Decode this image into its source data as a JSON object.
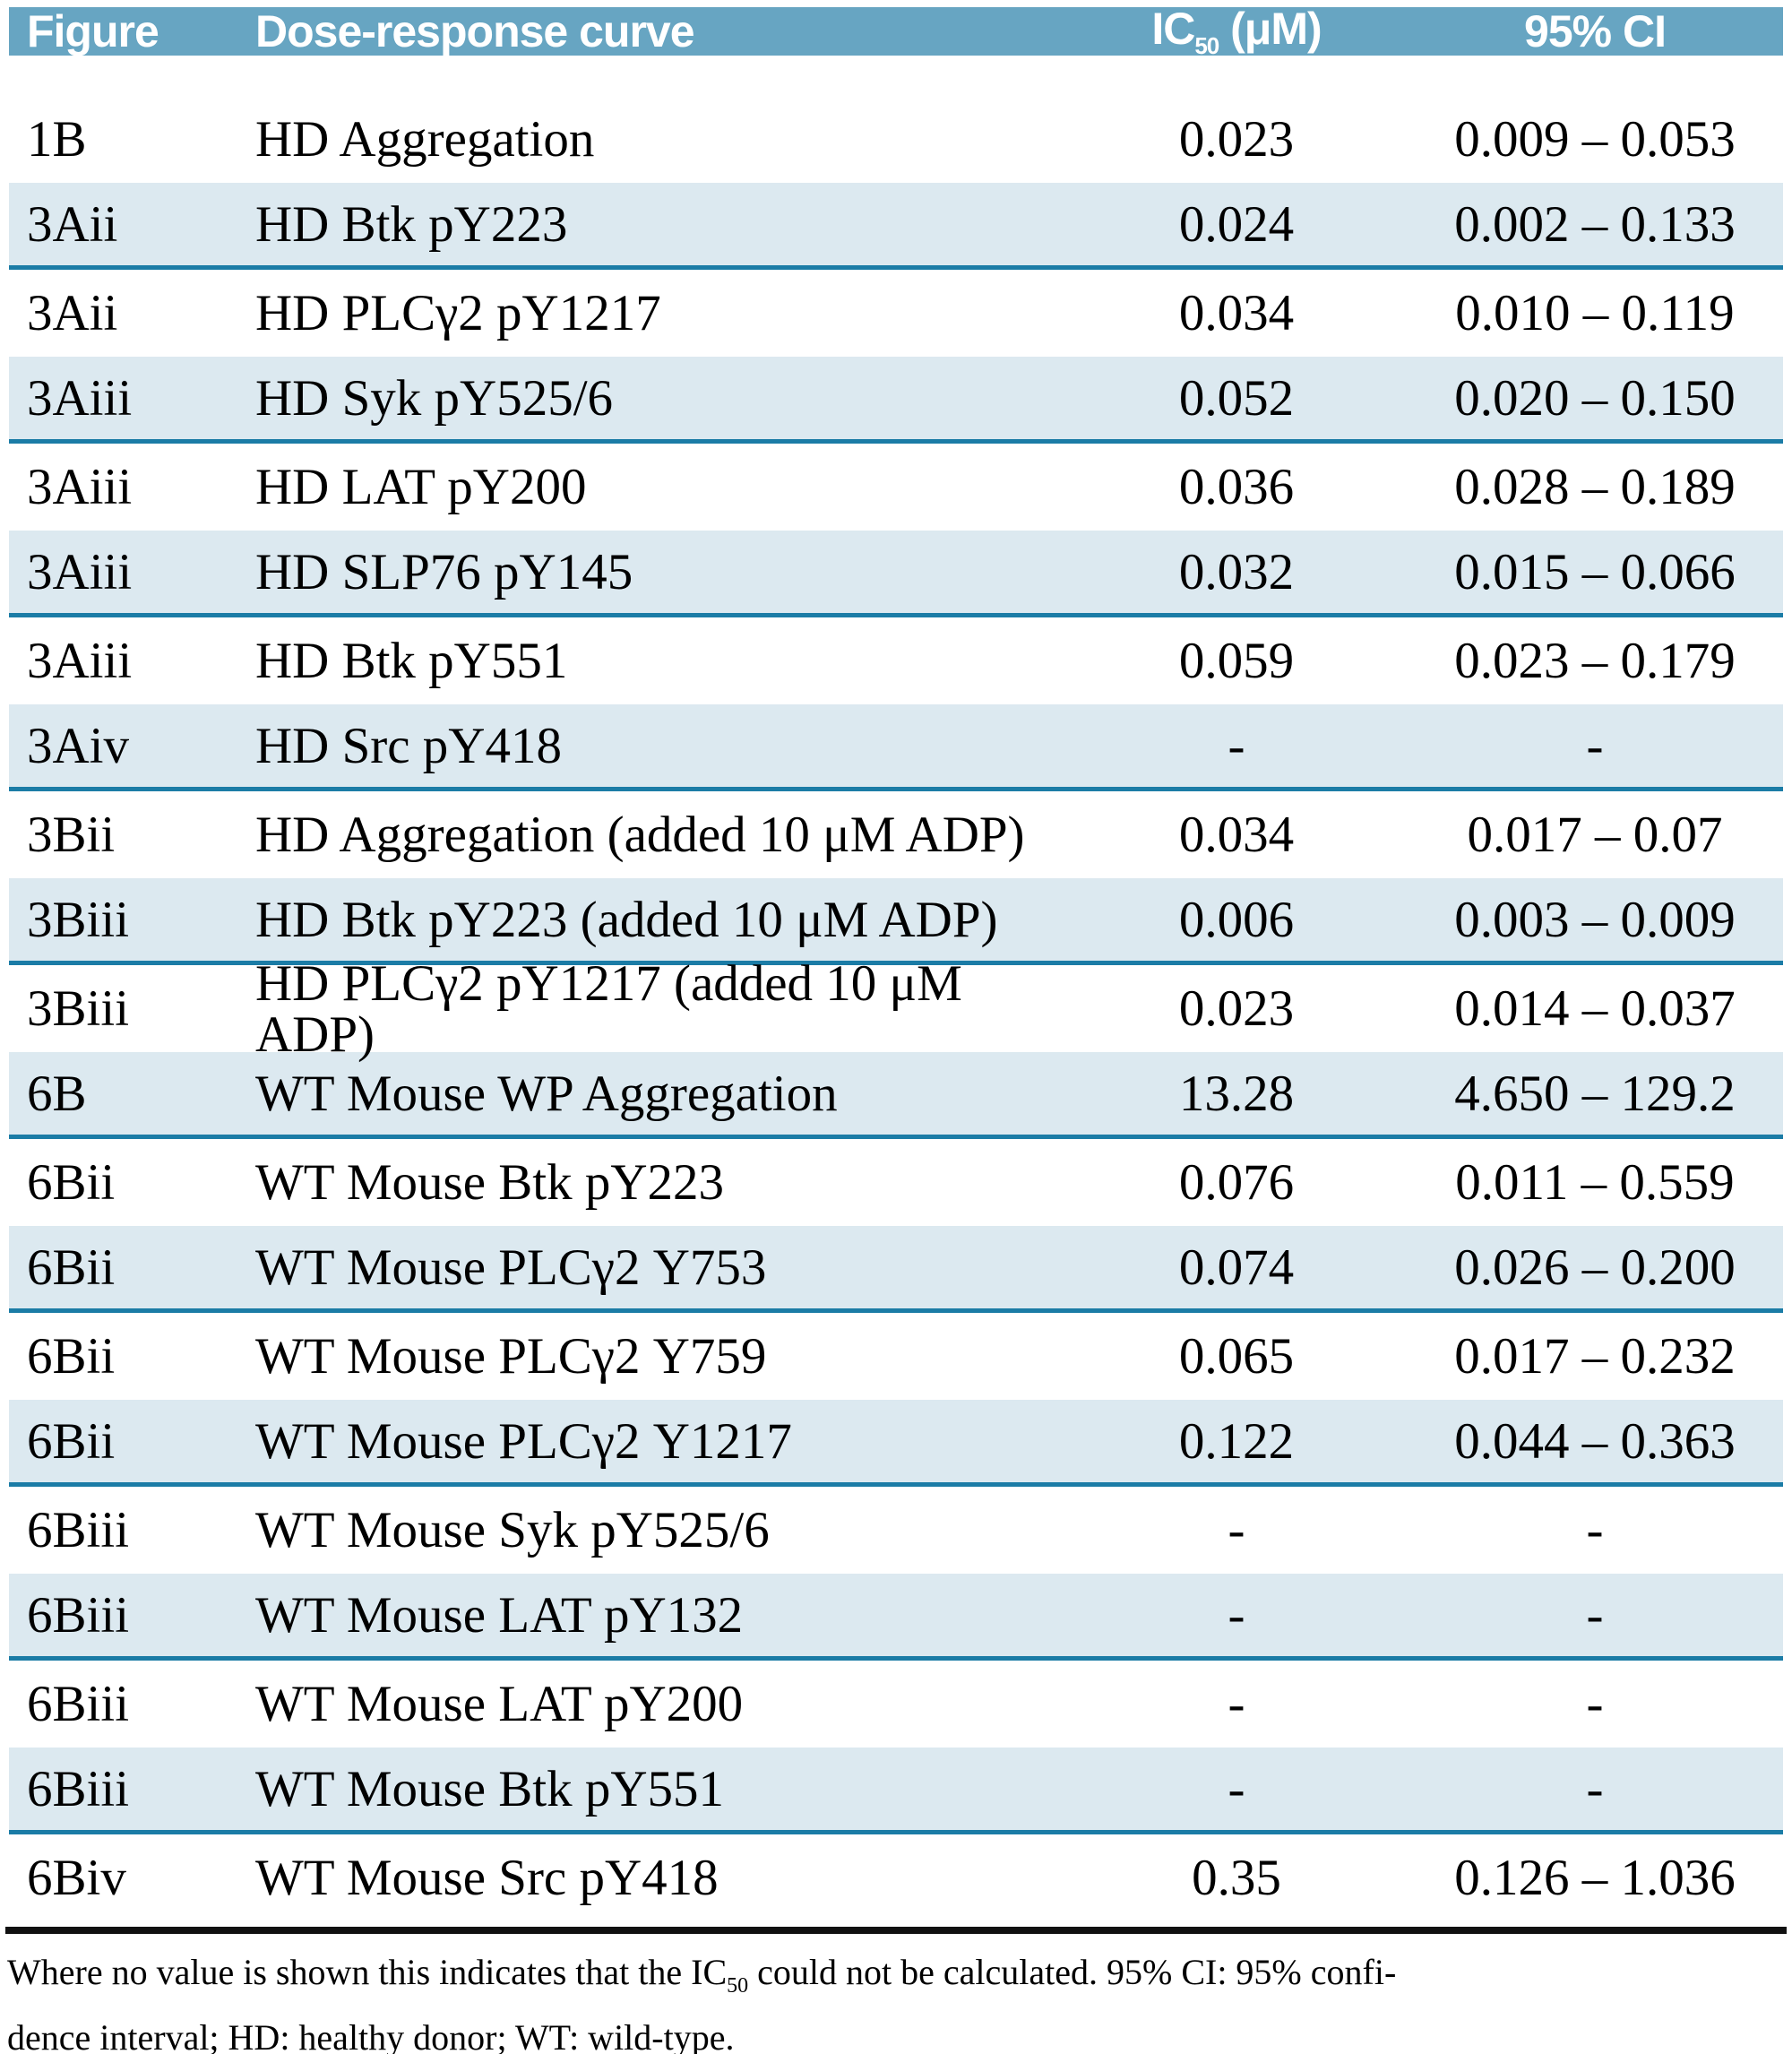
{
  "table": {
    "columns": [
      {
        "label": "Figure"
      },
      {
        "label": "Dose-response curve"
      },
      {
        "prefix": "IC",
        "sub": "50",
        "suffix": " (μM)"
      },
      {
        "label": "95% CI"
      }
    ],
    "rows": [
      {
        "figure": "1B",
        "curve": "HD Aggregation",
        "ic50": "0.023",
        "ci": "0.009 – 0.053"
      },
      {
        "figure": "3Aii",
        "curve": "HD Btk pY223",
        "ic50": "0.024",
        "ci": "0.002 – 0.133"
      },
      {
        "figure": "3Aii",
        "curve": "HD PLCγ2 pY1217",
        "ic50": "0.034",
        "ci": "0.010 – 0.119"
      },
      {
        "figure": "3Aiii",
        "curve": "HD Syk pY525/6",
        "ic50": "0.052",
        "ci": "0.020 – 0.150"
      },
      {
        "figure": "3Aiii",
        "curve": "HD LAT pY200",
        "ic50": "0.036",
        "ci": "0.028 – 0.189"
      },
      {
        "figure": "3Aiii",
        "curve": "HD SLP76 pY145",
        "ic50": "0.032",
        "ci": "0.015 – 0.066"
      },
      {
        "figure": "3Aiii",
        "curve": "HD Btk pY551",
        "ic50": "0.059",
        "ci": "0.023 – 0.179"
      },
      {
        "figure": "3Aiv",
        "curve": "HD Src pY418",
        "ic50": "-",
        "ci": "-"
      },
      {
        "figure": "3Bii",
        "curve": "HD Aggregation (added 10 μM ADP)",
        "ic50": "0.034",
        "ci": "0.017 – 0.07"
      },
      {
        "figure": "3Biii",
        "curve": "HD Btk pY223 (added 10 μM ADP)",
        "ic50": "0.006",
        "ci": "0.003 – 0.009"
      },
      {
        "figure": "3Biii",
        "curve": "HD PLCγ2 pY1217 (added 10 μM ADP)",
        "ic50": "0.023",
        "ci": "0.014 – 0.037"
      },
      {
        "figure": "6B",
        "curve": "WT Mouse WP Aggregation",
        "ic50": "13.28",
        "ci": "4.650 – 129.2"
      },
      {
        "figure": "6Bii",
        "curve": "WT Mouse Btk pY223",
        "ic50": "0.076",
        "ci": "0.011 – 0.559"
      },
      {
        "figure": "6Bii",
        "curve": "WT Mouse PLCγ2 Y753",
        "ic50": "0.074",
        "ci": "0.026 – 0.200"
      },
      {
        "figure": "6Bii",
        "curve": "WT Mouse PLCγ2 Y759",
        "ic50": "0.065",
        "ci": "0.017 – 0.232"
      },
      {
        "figure": "6Bii",
        "curve": "WT Mouse PLCγ2 Y1217",
        "ic50": "0.122",
        "ci": "0.044 – 0.363"
      },
      {
        "figure": "6Biii",
        "curve": "WT Mouse Syk pY525/6",
        "ic50": "-",
        "ci": "-"
      },
      {
        "figure": "6Biii",
        "curve": "WT Mouse LAT pY132",
        "ic50": "-",
        "ci": "-"
      },
      {
        "figure": "6Biii",
        "curve": "WT Mouse LAT pY200",
        "ic50": "-",
        "ci": "-"
      },
      {
        "figure": "6Biii",
        "curve": "WT Mouse Btk pY551",
        "ic50": "-",
        "ci": "-"
      },
      {
        "figure": "6Biv",
        "curve": "WT Mouse Src pY418",
        "ic50": "0.35",
        "ci": "0.126 – 1.036"
      }
    ]
  },
  "footnote": {
    "line1_pre": "Where no value is shown this indicates that the IC",
    "line1_sub": "50",
    "line1_post": " could not be calculated. 95% CI: 95% confi-",
    "line2": "dence interval; HD: healthy donor; WT: wild-type."
  },
  "colors": {
    "header_bg": "#67a5c2",
    "header_text": "#ffffff",
    "shaded_row_bg": "#dce9f0",
    "shaded_row_border": "#1b7ca6",
    "rule": "#111111",
    "text": "#000000",
    "page_bg": "#ffffff"
  }
}
